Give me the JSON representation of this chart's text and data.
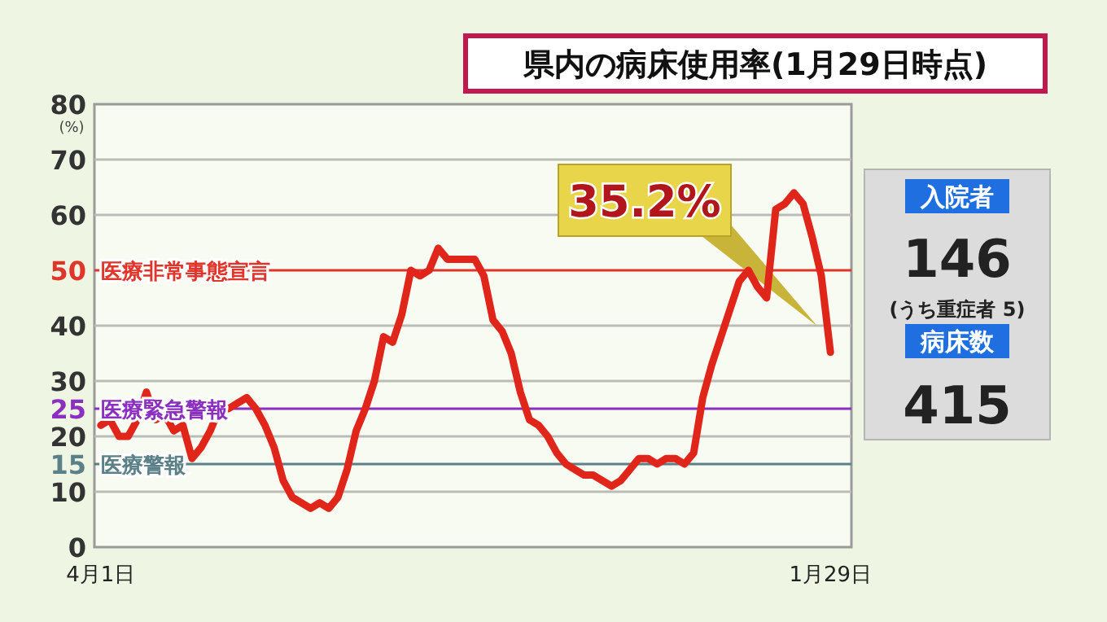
{
  "chart_data": [
    {
      "type": "line",
      "title": "県内の病床使用率(1月29日時点)",
      "ylabel": "(%)",
      "categories": [
        "4月1日",
        null,
        null,
        null,
        null,
        null,
        null,
        null,
        null,
        null,
        null,
        null,
        null,
        null,
        null,
        null,
        null,
        null,
        null,
        null,
        null,
        null,
        null,
        null,
        null,
        null,
        null,
        null,
        null,
        null,
        null,
        null,
        null,
        null,
        null,
        null,
        null,
        null,
        null,
        null,
        null,
        null,
        null,
        null,
        null,
        null,
        null,
        null,
        null,
        null,
        null,
        null,
        null,
        null,
        null,
        null,
        null,
        null,
        null,
        null,
        null,
        null,
        null,
        null,
        null,
        null,
        null,
        null,
        null,
        null,
        null,
        null,
        null,
        null,
        null,
        null,
        null,
        null,
        null,
        null,
        "1月29日"
      ],
      "series": [
        {
          "color": "#e0261b",
          "values": [
            22,
            23,
            20,
            20,
            23,
            28,
            23,
            24,
            21,
            22,
            16,
            18,
            21,
            25,
            25,
            26,
            27,
            25,
            22,
            18,
            12,
            9,
            8,
            7,
            8,
            7,
            9,
            14,
            21,
            25,
            30,
            38,
            37,
            42,
            50,
            49,
            50,
            54,
            52,
            52,
            52,
            52,
            49,
            41,
            39,
            35,
            28,
            23,
            22,
            20,
            17,
            15,
            14,
            13,
            13,
            12,
            11,
            12,
            14,
            16,
            16,
            15,
            16,
            16,
            15,
            17,
            27,
            33,
            38,
            43,
            48,
            50,
            47,
            45,
            61,
            62,
            64,
            62,
            56,
            49,
            35.2
          ]
        }
      ],
      "ylim": [
        0,
        80
      ],
      "yticks": [
        0,
        10,
        15,
        20,
        25,
        30,
        40,
        50,
        60,
        70,
        80
      ],
      "grid": "y",
      "ref_lines": [
        {
          "axis": "y",
          "value": 50,
          "label": "医療非常事態宣言",
          "color": "#e0352b"
        },
        {
          "axis": "y",
          "value": 25,
          "label": "医療緊急警報",
          "color": "#8a2fc0"
        },
        {
          "axis": "y",
          "value": 15,
          "label": "医療警報",
          "color": "#5b8088"
        }
      ],
      "annotations": [
        "35.2%"
      ]
    },
    {
      "type": "other",
      "annotations": [
        "入院者",
        "146",
        "(うち重症者 5)",
        "病床数",
        "415"
      ]
    }
  ]
}
